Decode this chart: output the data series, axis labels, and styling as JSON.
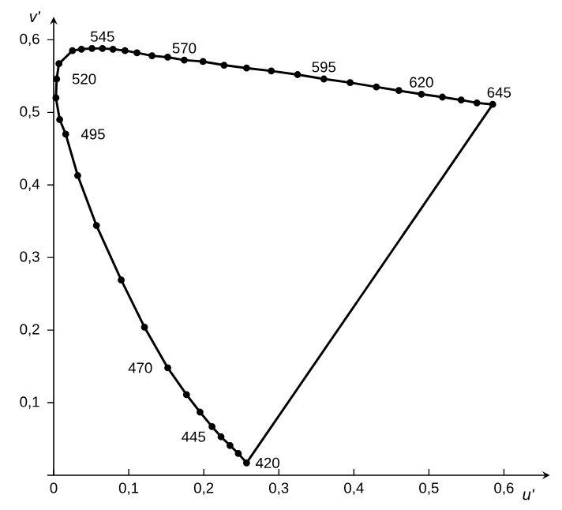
{
  "chart_data": {
    "type": "line",
    "xlabel": "u'",
    "ylabel": "v'",
    "xlim": [
      0,
      0.65
    ],
    "ylim": [
      0,
      0.62
    ],
    "xticks": [
      {
        "value": 0,
        "label": "0"
      },
      {
        "value": 0.1,
        "label": "0,1"
      },
      {
        "value": 0.2,
        "label": "0,2"
      },
      {
        "value": 0.3,
        "label": "0,3"
      },
      {
        "value": 0.4,
        "label": "0,4"
      },
      {
        "value": 0.5,
        "label": "0,5"
      },
      {
        "value": 0.6,
        "label": "0,6"
      }
    ],
    "yticks": [
      {
        "value": 0,
        "label": null
      },
      {
        "value": 0.1,
        "label": "0,1"
      },
      {
        "value": 0.2,
        "label": "0,2"
      },
      {
        "value": 0.3,
        "label": "0,3"
      },
      {
        "value": 0.4,
        "label": "0,4"
      },
      {
        "value": 0.5,
        "label": "0,5"
      },
      {
        "value": 0.6,
        "label": "0,6"
      }
    ],
    "series": [
      {
        "color": "#000000",
        "marker": "circle",
        "x": [
          0.257,
          0.246,
          0.235,
          0.223,
          0.211,
          0.195,
          0.177,
          0.152,
          0.121,
          0.09,
          0.057,
          0.032,
          0.016,
          0.008,
          0.003,
          0.004,
          0.007,
          0.025,
          0.037,
          0.051,
          0.065,
          0.079,
          0.095,
          0.111,
          0.131,
          0.152,
          0.174,
          0.199,
          0.227,
          0.257,
          0.29,
          0.325,
          0.36,
          0.395,
          0.43,
          0.46,
          0.49,
          0.518,
          0.543,
          0.564,
          0.585
        ],
        "values": [
          0.017,
          0.03,
          0.041,
          0.053,
          0.067,
          0.087,
          0.111,
          0.148,
          0.204,
          0.269,
          0.344,
          0.413,
          0.47,
          0.49,
          0.52,
          0.546,
          0.567,
          0.585,
          0.587,
          0.588,
          0.588,
          0.587,
          0.585,
          0.582,
          0.578,
          0.576,
          0.572,
          0.57,
          0.565,
          0.561,
          0.557,
          0.552,
          0.546,
          0.541,
          0.535,
          0.53,
          0.525,
          0.521,
          0.517,
          0.513,
          0.511
        ]
      },
      {
        "color": "#000000",
        "marker": "none",
        "x": [
          0.585,
          0.257
        ],
        "values": [
          0.511,
          0.017
        ]
      }
    ],
    "annotations": [
      {
        "text": "545",
        "x": 0.065,
        "y": 0.588
      },
      {
        "text": "570",
        "x": 0.174,
        "y": 0.572
      },
      {
        "text": "595",
        "x": 0.36,
        "y": 0.546
      },
      {
        "text": "620",
        "x": 0.49,
        "y": 0.525
      },
      {
        "text": "645",
        "x": 0.585,
        "y": 0.511
      },
      {
        "text": "520",
        "x": 0.004,
        "y": 0.546
      },
      {
        "text": "495",
        "x": 0.016,
        "y": 0.47
      },
      {
        "text": "470",
        "x": 0.152,
        "y": 0.148
      },
      {
        "text": "445",
        "x": 0.223,
        "y": 0.053
      },
      {
        "text": "420",
        "x": 0.257,
        "y": 0.017
      }
    ]
  }
}
